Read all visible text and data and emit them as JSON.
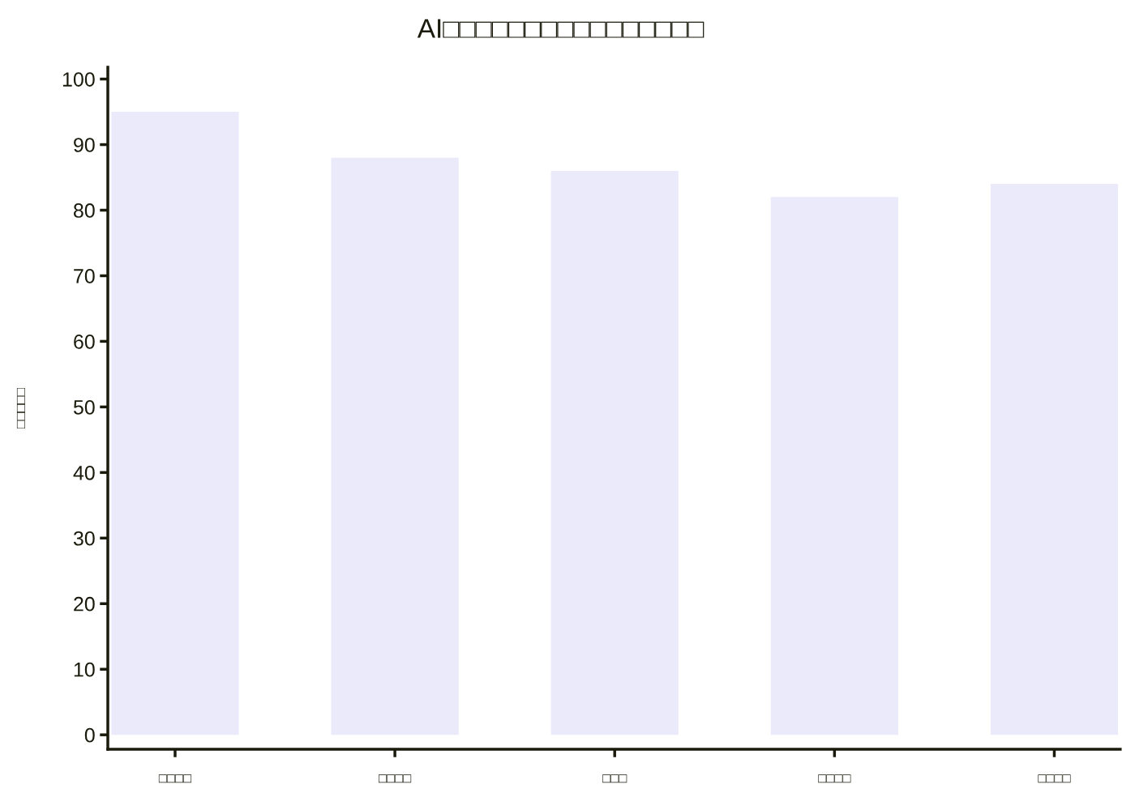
{
  "chart_data": {
    "type": "bar",
    "title": "AI□□□□□□□□□□□□□□□□",
    "ylabel": "□□□□□",
    "categories": [
      "□□□□",
      "□□□□",
      "□□□",
      "□□□□",
      "□□□□"
    ],
    "values": [
      95,
      88,
      86,
      82,
      84
    ],
    "color": "#ebeafb",
    "ylim": [
      -2.2,
      101.8
    ],
    "yticks": [
      0,
      10,
      20,
      30,
      40,
      50,
      60,
      70,
      80,
      90,
      100
    ]
  }
}
